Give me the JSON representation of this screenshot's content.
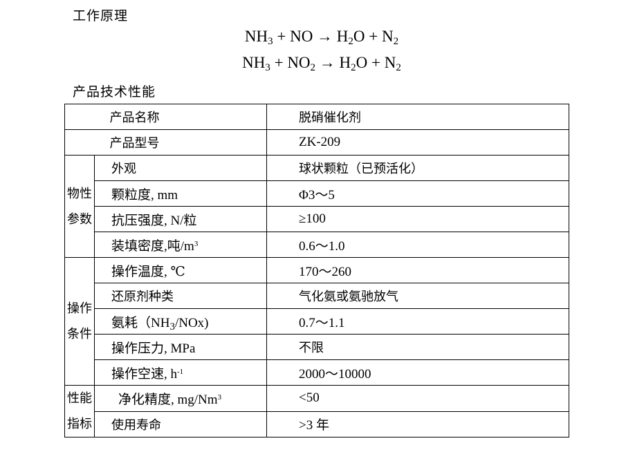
{
  "headings": {
    "principle": "工作原理",
    "performance": "产品技术性能"
  },
  "equations": [
    {
      "lhs": "NH",
      "lhs_sub": "3",
      "mid": " + NO → H",
      "mid_sub": "2",
      "rhs": "O + N",
      "rhs_sub": "2"
    },
    {
      "lhs": "NH",
      "lhs_sub": "3",
      "mid": " + NO",
      "mid_sub": "2",
      "mid2": " → H",
      "mid2_sub": "2",
      "rhs": "O + N",
      "rhs_sub": "2"
    }
  ],
  "table": {
    "name_label": "产品名称",
    "name_value": "脱硝催化剂",
    "model_label": "产品型号",
    "model_value": "ZK-209",
    "groups": {
      "physical": [
        "物性",
        "参数"
      ],
      "operating": [
        "操作",
        "条件"
      ],
      "performance": [
        "性能",
        "指标"
      ]
    },
    "rows": [
      {
        "label": "外观",
        "value": "球状颗粒（已预活化）"
      },
      {
        "label": "颗粒度, mm",
        "value": "Φ3～5"
      },
      {
        "label": "抗压强度, N/粒",
        "value": "≥100"
      },
      {
        "label": "装填密度,吨/m",
        "label_sup": "3",
        "value": "0.6～1.0"
      },
      {
        "label": "操作温度, ℃",
        "value": "170～260"
      },
      {
        "label": "还原剂种类",
        "value": "气化氨或氨驰放气"
      },
      {
        "label": "氨耗（NH",
        "label_sub": "3",
        "label_tail": "/NOx)",
        "value": "0.7～1.1"
      },
      {
        "label": "操作压力, MPa",
        "value": "不限"
      },
      {
        "label": "操作空速, h",
        "label_sup": "-1",
        "value": "2000～10000"
      },
      {
        "label": "净化精度, mg/Nm",
        "label_sup": "3",
        "value": "<50"
      },
      {
        "label": "使用寿命",
        "value": ">3 年"
      }
    ]
  }
}
